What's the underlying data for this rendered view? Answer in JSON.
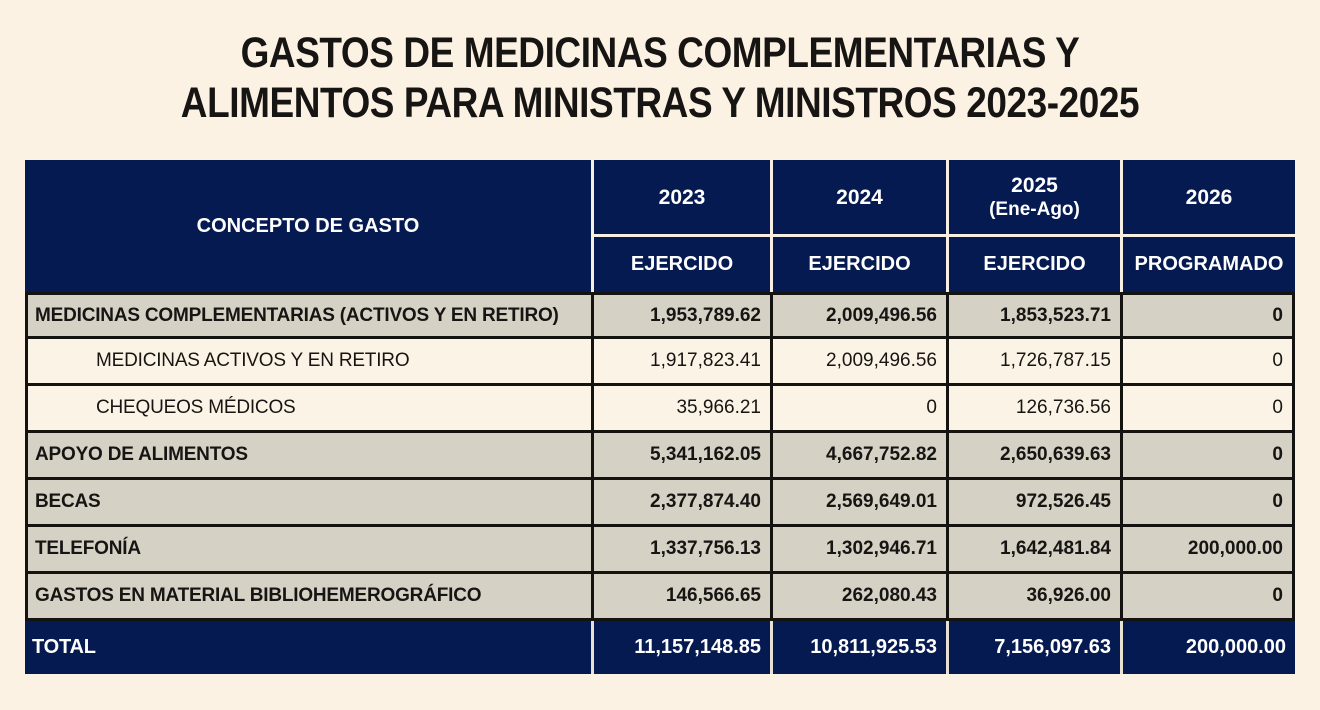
{
  "title": {
    "line1": "GASTOS DE MEDICINAS COMPLEMENTARIAS Y",
    "line2": "ALIMENTOS PARA MINISTRAS Y MINISTROS 2023-2025"
  },
  "colors": {
    "page_bg": "#fcf2e3",
    "navy": "#061a52",
    "gray_row": "#d6d1c5",
    "cream_row": "#fbf4e6",
    "border_dark": "#15130f",
    "border_light": "#f7f0e2",
    "total_div": "#e9e1d0",
    "text_dark": "#171513",
    "text_white": "#ffffff"
  },
  "table": {
    "concept_header": "CONCEPTO DE GASTO",
    "columns": [
      {
        "year": "2023",
        "note": "",
        "sub": "EJERCIDO"
      },
      {
        "year": "2024",
        "note": "",
        "sub": "EJERCIDO"
      },
      {
        "year": "2025",
        "note": "(Ene-Ago)",
        "sub": "EJERCIDO"
      },
      {
        "year": "2026",
        "note": "",
        "sub": "PROGRAMADO"
      }
    ],
    "rows": [
      {
        "label": "MEDICINAS COMPLEMENTARIAS (ACTIVOS Y EN RETIRO)",
        "style": "group",
        "values": [
          "1,953,789.62",
          "2,009,496.56",
          "1,853,523.71",
          "0"
        ]
      },
      {
        "label": "MEDICINAS ACTIVOS Y EN RETIRO",
        "style": "sub",
        "values": [
          "1,917,823.41",
          "2,009,496.56",
          "1,726,787.15",
          "0"
        ]
      },
      {
        "label": "CHEQUEOS MÉDICOS",
        "style": "sub",
        "values": [
          "35,966.21",
          "0",
          "126,736.56",
          "0"
        ]
      },
      {
        "label": "APOYO DE ALIMENTOS",
        "style": "group",
        "values": [
          "5,341,162.05",
          "4,667,752.82",
          "2,650,639.63",
          "0"
        ]
      },
      {
        "label": "BECAS",
        "style": "group",
        "values": [
          "2,377,874.40",
          "2,569,649.01",
          "972,526.45",
          "0"
        ]
      },
      {
        "label": "TELEFONÍA",
        "style": "group",
        "values": [
          "1,337,756.13",
          "1,302,946.71",
          "1,642,481.84",
          "200,000.00"
        ]
      },
      {
        "label": "GASTOS EN MATERIAL BIBLIOHEMEROGRÁFICO",
        "style": "group",
        "values": [
          "146,566.65",
          "262,080.43",
          "36,926.00",
          "0"
        ]
      }
    ],
    "total": {
      "label": "TOTAL",
      "values": [
        "11,157,148.85",
        "10,811,925.53",
        "7,156,097.63",
        "200,000.00"
      ]
    }
  }
}
